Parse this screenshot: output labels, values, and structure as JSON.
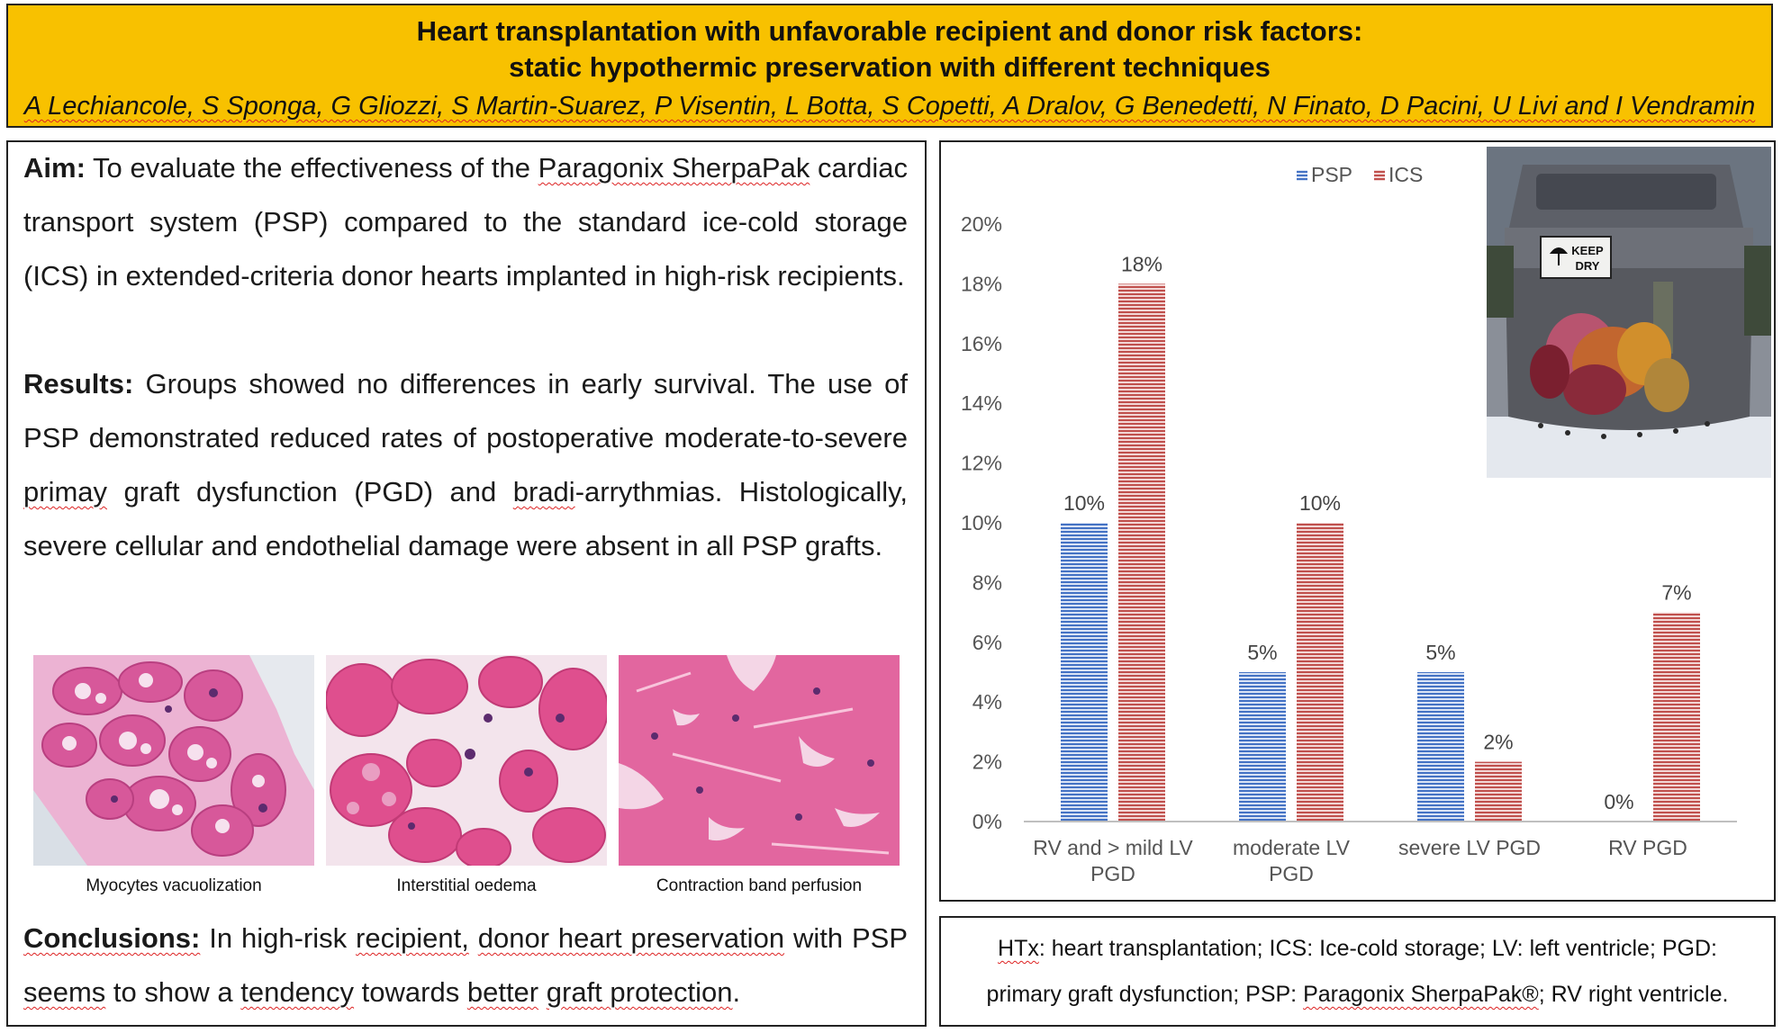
{
  "header": {
    "title_line1": "Heart transplantation with unfavorable recipient and donor risk factors:",
    "title_line2": "static hypothermic preservation with different techniques",
    "authors": "A Lechiancole, S Sponga, G Gliozzi, S Martin-Suarez, P Visentin, L Botta, S Copetti, A Dralov, G Benedetti, N Finato, D Pacini, U Livi and I Vendramin"
  },
  "aim": {
    "label": "Aim:",
    "text_a": " To evaluate the effectiveness of the ",
    "text_link": "Paragonix SherpaPak",
    "text_b": " cardiac transport system (PSP) compared to the standard ice-cold storage (ICS) in extended-criteria donor hearts implanted in high-risk recipients."
  },
  "results": {
    "label": "Results:",
    "text_a": " Groups showed no differences in early survival. The use of PSP demonstrated reduced rates of postoperative moderate-to-severe ",
    "text_w1": "primay",
    "text_b": " graft dysfunction (PGD)  and ",
    "text_w2": "bradi",
    "text_c": "-arrythmias. Histologically, severe cellular and endothelial damage were absent in all PSP grafts."
  },
  "histology": [
    {
      "caption": "Myocytes vacuolization"
    },
    {
      "caption": "Interstitial oedema"
    },
    {
      "caption": "Contraction band perfusion"
    }
  ],
  "conclusions": {
    "label": "Conclusions:",
    "text_a": " In high-risk ",
    "w1": "recipient,",
    "text_b": " ",
    "w2": "donor heart preservation",
    "text_c": " with PSP ",
    "w3": "seems",
    "text_d": " to show a ",
    "w4": "tendency",
    "text_e": " towards ",
    "w5": "better",
    "text_f": " ",
    "w6": "graft protection",
    "text_g": "."
  },
  "abbreviations": {
    "line1_a": "HTx",
    "line1_b": ": heart transplantation; ICS: Ice-cold storage; LV: left ventricle; PGD:",
    "line2_a": "primary graft dysfunction; PSP: ",
    "line2_link": "Paragonix SherpaPak®",
    "line2_b": "; RV right ventricle."
  },
  "photo": {
    "label_line1": "KEEP",
    "label_line2": "DRY"
  },
  "chart_data": {
    "type": "bar",
    "categories": [
      [
        "RV and > mild LV",
        "PGD"
      ],
      [
        "moderate LV",
        "PGD"
      ],
      [
        "severe LV PGD"
      ],
      [
        "RV PGD"
      ]
    ],
    "series": [
      {
        "name": "PSP",
        "values": [
          10,
          5,
          5,
          0
        ],
        "labels": [
          "10%",
          "5%",
          "5%",
          "0%"
        ],
        "color": "#4472c4"
      },
      {
        "name": "ICS",
        "values": [
          18,
          10,
          2,
          7
        ],
        "labels": [
          "18%",
          "10%",
          "2%",
          "7%"
        ],
        "color": "#c0504d"
      }
    ],
    "yticks": [
      "0%",
      "2%",
      "4%",
      "6%",
      "8%",
      "10%",
      "12%",
      "14%",
      "16%",
      "18%",
      "20%"
    ],
    "ylim": [
      0,
      20
    ],
    "unit": "%",
    "legend": "top-center",
    "grid": false,
    "bar_fill": "horizontal stripes"
  }
}
